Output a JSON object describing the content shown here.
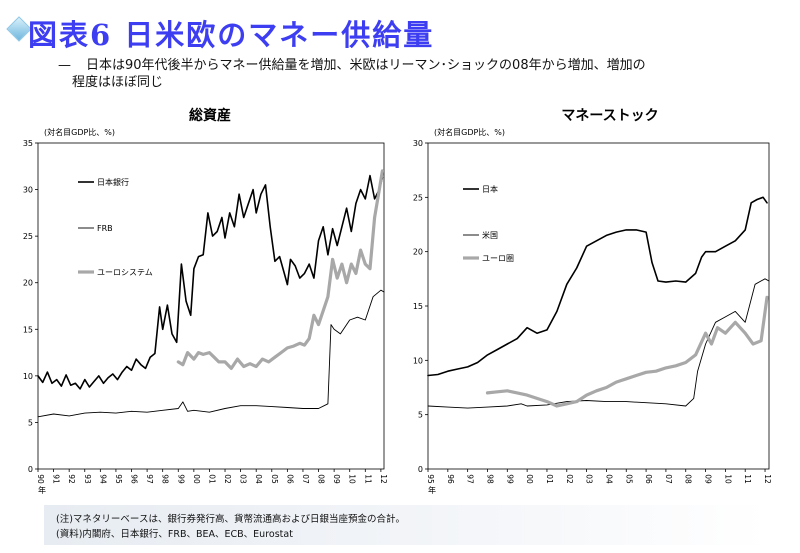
{
  "page": {
    "title": "図表6 日米欧のマネー供給量",
    "subtitle_dash": "—",
    "subtitle_line1": "日本は90年代後半からマネー供給量を増加、米欧はリーマン･ショックの08年から増加、増加の",
    "subtitle_line2": "程度はほぼ同じ",
    "note1": "(注)マネタリーベースは、銀行券発行高、貨幣流通高および日銀当座預金の合計。",
    "note2": "(資料)内閣府、日本銀行、FRB、BEA、ECB、Eurostat"
  },
  "chart_data": [
    {
      "type": "line",
      "title": "総資産",
      "ylabel": "(対名目GDP比、%)",
      "ylim": [
        0,
        35
      ],
      "yticks": [
        0,
        5,
        10,
        15,
        20,
        25,
        30,
        35
      ],
      "xlim": [
        1990,
        2012.2
      ],
      "xticks": [
        {
          "v": 1990,
          "label": "90"
        },
        {
          "v": 1991,
          "label": "91"
        },
        {
          "v": 1992,
          "label": "92"
        },
        {
          "v": 1993,
          "label": "93"
        },
        {
          "v": 1994,
          "label": "94"
        },
        {
          "v": 1995,
          "label": "95"
        },
        {
          "v": 1996,
          "label": "96"
        },
        {
          "v": 1997,
          "label": "97"
        },
        {
          "v": 1998,
          "label": "98"
        },
        {
          "v": 1999,
          "label": "99"
        },
        {
          "v": 2000,
          "label": "00"
        },
        {
          "v": 2001,
          "label": "01"
        },
        {
          "v": 2002,
          "label": "02"
        },
        {
          "v": 2003,
          "label": "03"
        },
        {
          "v": 2004,
          "label": "04"
        },
        {
          "v": 2005,
          "label": "05"
        },
        {
          "v": 2006,
          "label": "06"
        },
        {
          "v": 2007,
          "label": "07"
        },
        {
          "v": 2008,
          "label": "08"
        },
        {
          "v": 2009,
          "label": "09"
        },
        {
          "v": 2010,
          "label": "10"
        },
        {
          "v": 2011,
          "label": "11"
        },
        {
          "v": 2012,
          "label": "12"
        }
      ],
      "xunit": "年",
      "grid": false,
      "legend_position": "left",
      "series": [
        {
          "name": "日本銀行",
          "color": "#000000",
          "width": 1.6,
          "x": [
            1990,
            1990.3,
            1990.6,
            1990.9,
            1991.2,
            1991.5,
            1991.8,
            1992.1,
            1992.4,
            1992.7,
            1993,
            1993.3,
            1993.6,
            1993.9,
            1994.2,
            1994.5,
            1994.8,
            1995.1,
            1995.4,
            1995.7,
            1996,
            1996.3,
            1996.6,
            1996.9,
            1997.2,
            1997.5,
            1997.8,
            1998,
            1998.3,
            1998.6,
            1998.9,
            1999.2,
            1999.5,
            1999.8,
            2000,
            2000.3,
            2000.6,
            2000.9,
            2001.2,
            2001.5,
            2001.8,
            2002,
            2002.3,
            2002.6,
            2002.9,
            2003.2,
            2003.5,
            2003.8,
            2004,
            2004.3,
            2004.6,
            2004.9,
            2005.2,
            2005.5,
            2005.8,
            2006,
            2006.2,
            2006.5,
            2006.8,
            2007.1,
            2007.4,
            2007.7,
            2008,
            2008.3,
            2008.6,
            2008.9,
            2009.2,
            2009.5,
            2009.8,
            2010.1,
            2010.4,
            2010.7,
            2011,
            2011.3,
            2011.6,
            2011.9,
            2012.1
          ],
          "y": [
            10,
            9.3,
            10.4,
            9.2,
            9.6,
            8.9,
            10.1,
            9.0,
            9.2,
            8.6,
            9.6,
            8.8,
            9.4,
            10.0,
            9.2,
            9.8,
            10.2,
            9.6,
            10.4,
            11.0,
            10.6,
            11.8,
            11.2,
            10.8,
            12.0,
            12.4,
            17.4,
            15.0,
            17.6,
            14.5,
            13.6,
            22.0,
            18.0,
            16.5,
            21.5,
            22.8,
            23.0,
            27.5,
            25.0,
            25.5,
            27.0,
            24.8,
            27.5,
            26.0,
            29.5,
            27.0,
            28.5,
            30.0,
            27.5,
            29.5,
            30.5,
            26.0,
            22.3,
            22.8,
            21.0,
            19.8,
            22.5,
            21.8,
            20.5,
            21.0,
            22.0,
            20.5,
            24.5,
            26.0,
            23.0,
            25.8,
            24.0,
            26.0,
            28.0,
            25.5,
            28.5,
            30.0,
            29.0,
            31.5,
            29.0,
            30.0,
            31.3
          ]
        },
        {
          "name": "FRB",
          "color": "#000000",
          "width": 0.9,
          "x": [
            1990,
            1991,
            1992,
            1993,
            1994,
            1995,
            1996,
            1997,
            1998,
            1999,
            1999.3,
            1999.6,
            2000,
            2001,
            2002,
            2003,
            2004,
            2005,
            2006,
            2007,
            2008,
            2008.6,
            2008.8,
            2009,
            2009.4,
            2010,
            2010.5,
            2011,
            2011.5,
            2012,
            2012.2
          ],
          "y": [
            5.6,
            5.9,
            5.7,
            6.0,
            6.1,
            6.0,
            6.2,
            6.1,
            6.3,
            6.5,
            7.2,
            6.2,
            6.3,
            6.1,
            6.5,
            6.8,
            6.8,
            6.7,
            6.6,
            6.5,
            6.5,
            7.0,
            15.5,
            15.0,
            14.5,
            16.0,
            16.3,
            16.0,
            18.5,
            19.2,
            19.0
          ]
        },
        {
          "name": "ユーロシステム",
          "color": "#a8a8a8",
          "width": 3.2,
          "x": [
            1999,
            1999.3,
            1999.6,
            2000,
            2000.3,
            2000.6,
            2001,
            2001.3,
            2001.6,
            2002,
            2002.4,
            2002.8,
            2003.2,
            2003.6,
            2004,
            2004.4,
            2004.8,
            2005.2,
            2005.6,
            2006,
            2006.4,
            2006.8,
            2007.1,
            2007.4,
            2007.7,
            2008,
            2008.3,
            2008.6,
            2008.9,
            2009.2,
            2009.5,
            2009.8,
            2010.1,
            2010.4,
            2010.7,
            2011,
            2011.3,
            2011.6,
            2011.9,
            2012.1
          ],
          "y": [
            11.5,
            11.2,
            12.5,
            11.8,
            12.5,
            12.3,
            12.5,
            12.0,
            11.5,
            11.5,
            10.8,
            11.8,
            11.0,
            11.3,
            11.0,
            11.8,
            11.5,
            12.0,
            12.5,
            13.0,
            13.2,
            13.5,
            13.3,
            14.0,
            16.5,
            15.5,
            17.0,
            18.5,
            22.5,
            20.5,
            22.0,
            20.0,
            22.0,
            21.0,
            23.5,
            22.0,
            21.5,
            27.0,
            30.0,
            32.0
          ]
        }
      ]
    },
    {
      "type": "line",
      "title": "マネーストック",
      "ylabel": "(対名目GDP比、%)",
      "ylim": [
        0,
        30
      ],
      "yticks": [
        0,
        5,
        10,
        15,
        20,
        25,
        30
      ],
      "xlim": [
        1995,
        2012.2
      ],
      "xticks": [
        {
          "v": 1995,
          "label": "95"
        },
        {
          "v": 1996,
          "label": "96"
        },
        {
          "v": 1997,
          "label": "97"
        },
        {
          "v": 1998,
          "label": "98"
        },
        {
          "v": 1999,
          "label": "99"
        },
        {
          "v": 2000,
          "label": "00"
        },
        {
          "v": 2001,
          "label": "01"
        },
        {
          "v": 2002,
          "label": "02"
        },
        {
          "v": 2003,
          "label": "03"
        },
        {
          "v": 2004,
          "label": "04"
        },
        {
          "v": 2005,
          "label": "05"
        },
        {
          "v": 2006,
          "label": "06"
        },
        {
          "v": 2007,
          "label": "07"
        },
        {
          "v": 2008,
          "label": "08"
        },
        {
          "v": 2009,
          "label": "09"
        },
        {
          "v": 2010,
          "label": "10"
        },
        {
          "v": 2011,
          "label": "11"
        },
        {
          "v": 2012,
          "label": "12"
        }
      ],
      "xunit": "年",
      "grid": false,
      "legend_position": "left",
      "series": [
        {
          "name": "日本",
          "color": "#000000",
          "width": 1.6,
          "x": [
            1995,
            1995.5,
            1996,
            1996.5,
            1997,
            1997.5,
            1998,
            1998.5,
            1999,
            1999.5,
            2000,
            2000.5,
            2001,
            2001.5,
            2002,
            2002.5,
            2003,
            2003.5,
            2004,
            2004.5,
            2005,
            2005.5,
            2006,
            2006.3,
            2006.6,
            2007,
            2007.5,
            2008,
            2008.5,
            2008.8,
            2009,
            2009.5,
            2010,
            2010.5,
            2011,
            2011.3,
            2011.6,
            2011.9,
            2012.1
          ],
          "y": [
            8.6,
            8.7,
            9.0,
            9.2,
            9.4,
            9.8,
            10.5,
            11.0,
            11.5,
            12.0,
            13.0,
            12.5,
            12.8,
            14.5,
            17.0,
            18.5,
            20.5,
            21.0,
            21.5,
            21.8,
            22.0,
            22.0,
            21.8,
            19.0,
            17.3,
            17.2,
            17.3,
            17.2,
            18.0,
            19.5,
            20.0,
            20.0,
            20.5,
            21.0,
            22.0,
            24.5,
            24.8,
            25.0,
            24.5
          ]
        },
        {
          "name": "米国",
          "color": "#000000",
          "width": 0.9,
          "x": [
            1995,
            1996,
            1997,
            1998,
            1999,
            1999.7,
            2000,
            2001,
            2002,
            2003,
            2004,
            2005,
            2006,
            2007,
            2008,
            2008.4,
            2008.6,
            2009,
            2009.5,
            2010,
            2010.5,
            2011,
            2011.5,
            2012,
            2012.2
          ],
          "y": [
            5.8,
            5.7,
            5.6,
            5.7,
            5.8,
            6.0,
            5.8,
            5.9,
            6.2,
            6.3,
            6.2,
            6.2,
            6.1,
            6.0,
            5.8,
            6.5,
            9.0,
            11.5,
            13.5,
            14.0,
            14.5,
            13.5,
            17.0,
            17.5,
            17.3
          ]
        },
        {
          "name": "ユーロ圏",
          "color": "#a8a8a8",
          "width": 3.2,
          "x": [
            1998,
            1998.5,
            1999,
            1999.5,
            2000,
            2000.5,
            2001,
            2001.5,
            2002,
            2002.5,
            2003,
            2003.5,
            2004,
            2004.5,
            2005,
            2005.5,
            2006,
            2006.5,
            2007,
            2007.5,
            2008,
            2008.5,
            2009,
            2009.3,
            2009.6,
            2010,
            2010.5,
            2011,
            2011.4,
            2011.8,
            2012.1
          ],
          "y": [
            7.0,
            7.1,
            7.2,
            7.0,
            6.8,
            6.5,
            6.2,
            5.8,
            6.0,
            6.2,
            6.8,
            7.2,
            7.5,
            8.0,
            8.3,
            8.6,
            8.9,
            9.0,
            9.3,
            9.5,
            9.8,
            10.5,
            12.5,
            11.5,
            13.0,
            12.5,
            13.5,
            12.5,
            11.5,
            11.8,
            15.8
          ]
        }
      ]
    }
  ]
}
